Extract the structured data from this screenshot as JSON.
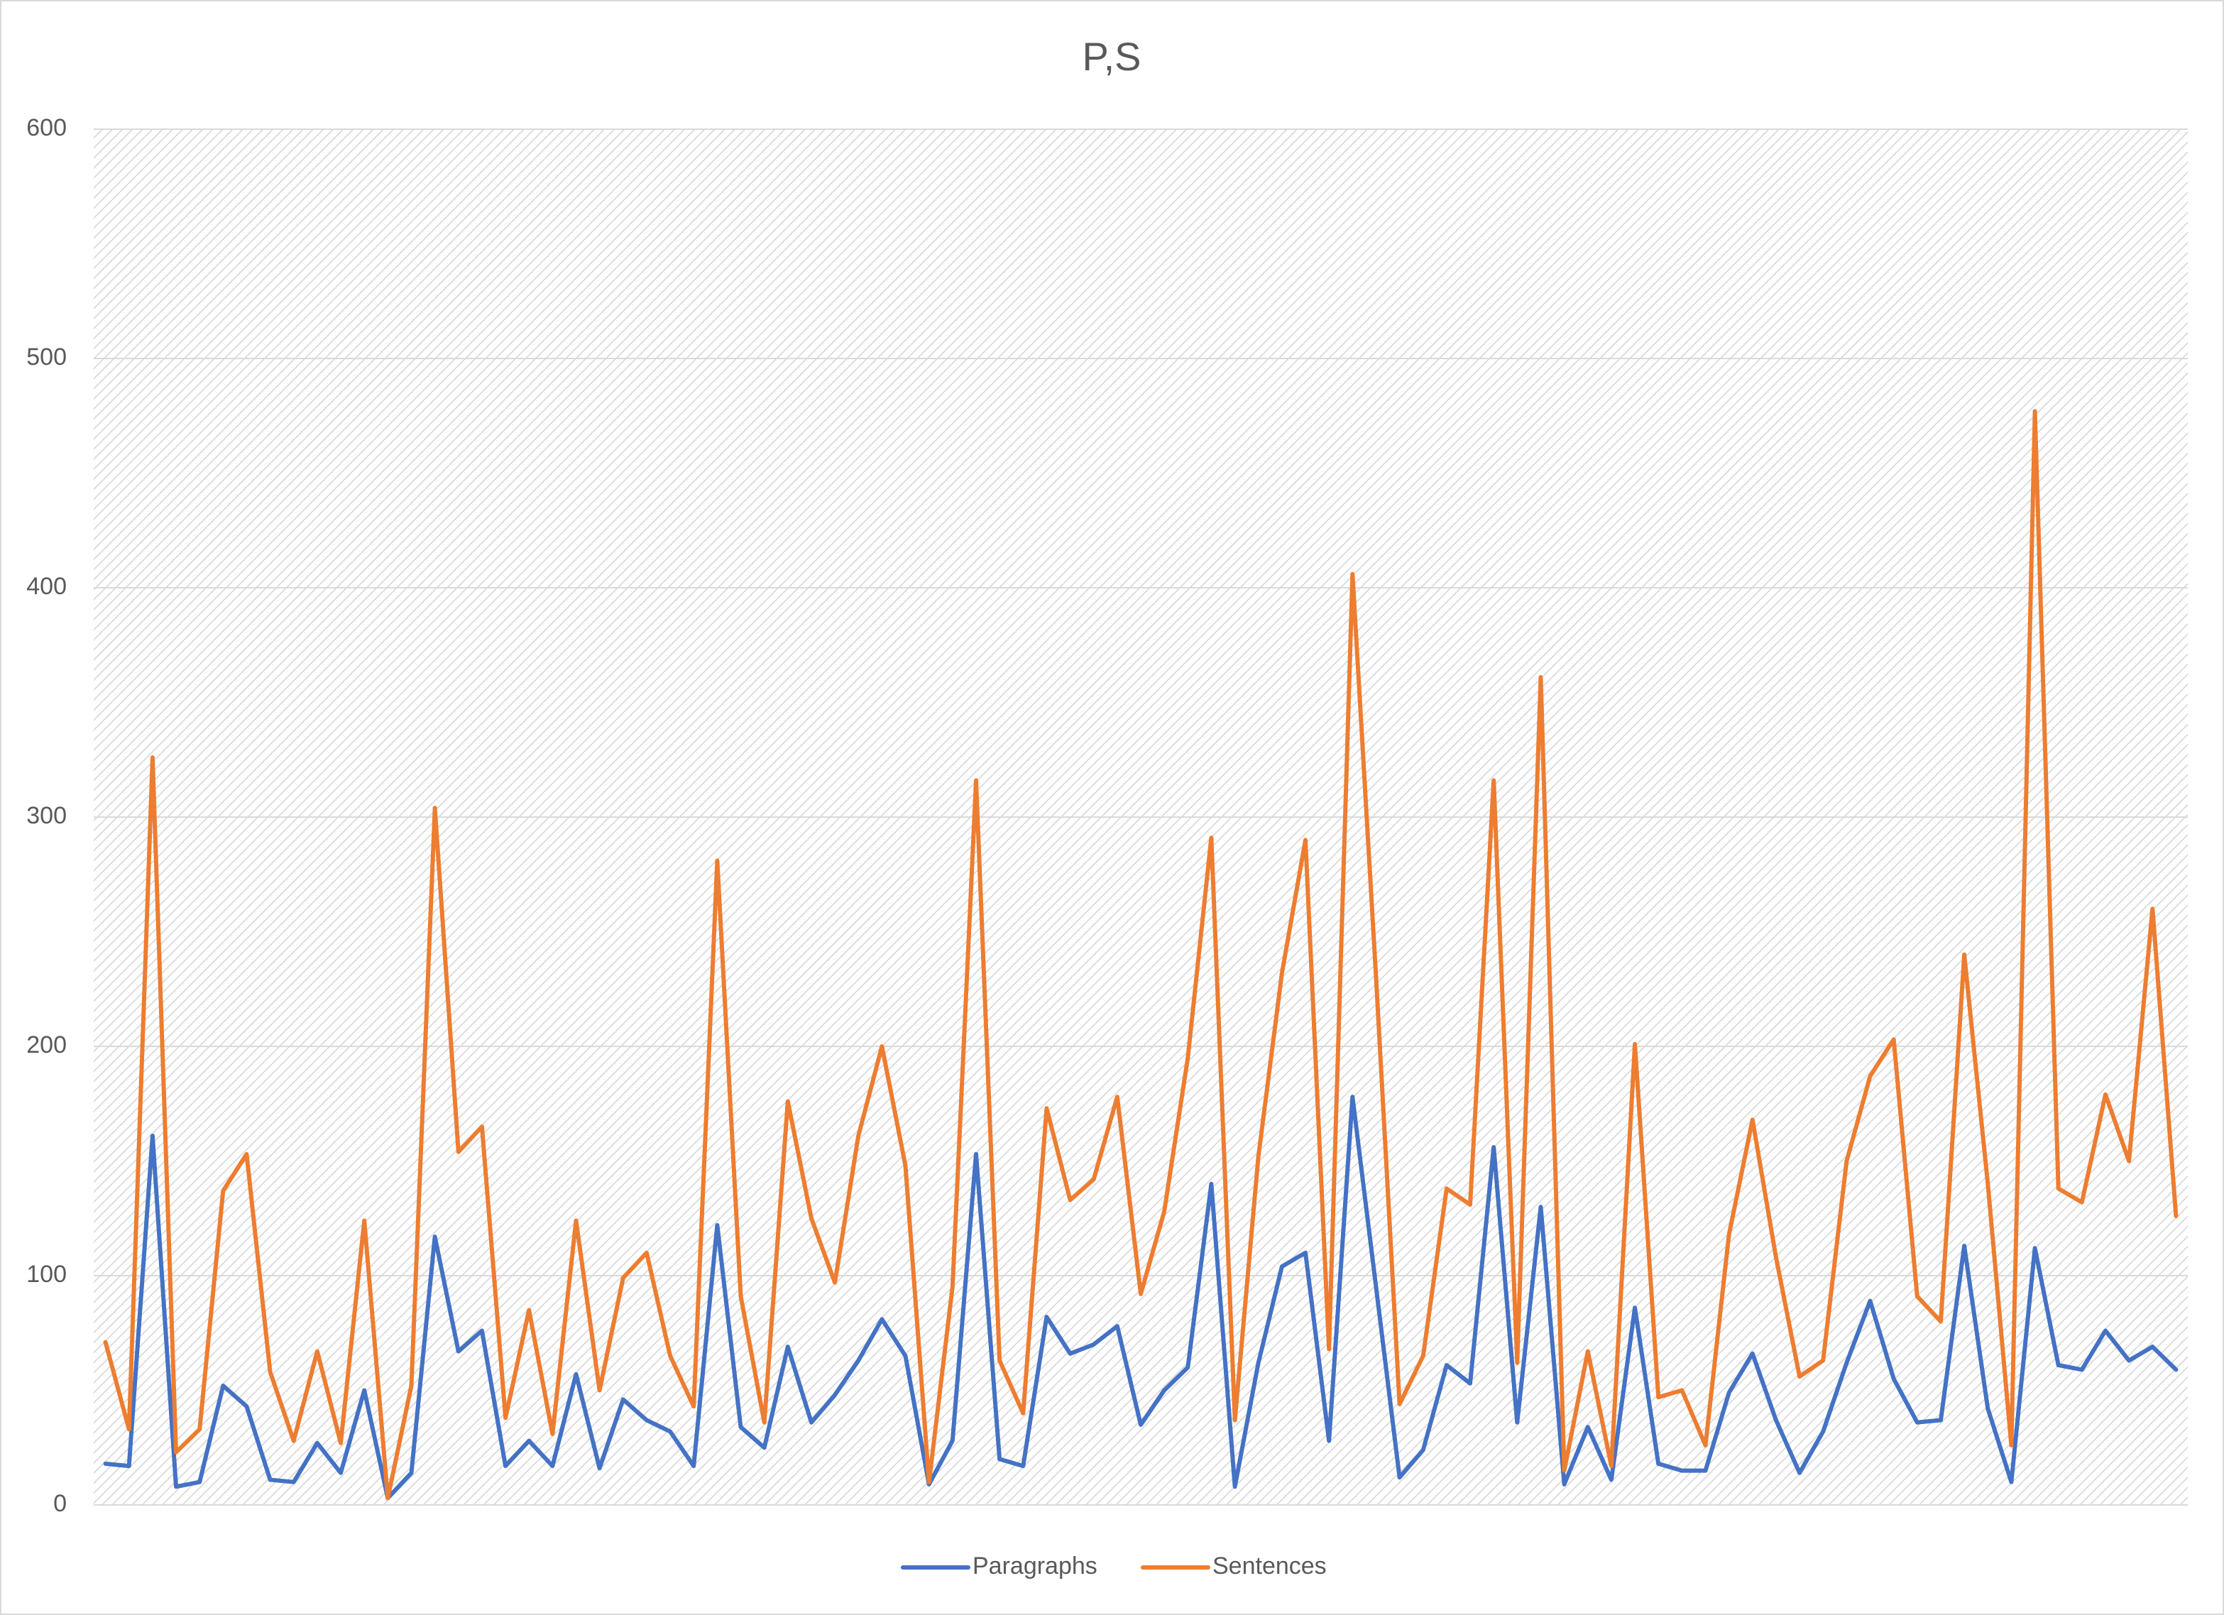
{
  "chart_data": {
    "type": "line",
    "title": "P,S",
    "categories": [
      null,
      null,
      null,
      null,
      null,
      null,
      null,
      null,
      null,
      null,
      null,
      null,
      null,
      null,
      null,
      null,
      null,
      null,
      null,
      null,
      null,
      null,
      null,
      null,
      null,
      null,
      null,
      null,
      null,
      null,
      null,
      null,
      null,
      null,
      null,
      null,
      null,
      null,
      null,
      null,
      null,
      null,
      null,
      null,
      null,
      null,
      null,
      null,
      null,
      null,
      null,
      null,
      null,
      null,
      null,
      null,
      null,
      null,
      null,
      null,
      null,
      null,
      null,
      null,
      null,
      null,
      null,
      null,
      null,
      null,
      null,
      null,
      null,
      null,
      null,
      null,
      null,
      null,
      null,
      null,
      null,
      null,
      null,
      null,
      null,
      null,
      null,
      null,
      null
    ],
    "series": [
      {
        "name": "Paragraphs",
        "color": "#4472c4",
        "values": [
          18,
          17,
          161,
          8,
          10,
          52,
          43,
          11,
          10,
          27,
          14,
          50,
          3,
          14,
          117,
          67,
          76,
          17,
          28,
          17,
          57,
          16,
          46,
          37,
          32,
          17,
          122,
          34,
          25,
          69,
          36,
          48,
          63,
          81,
          65,
          9,
          28,
          153,
          20,
          17,
          82,
          66,
          70,
          78,
          35,
          50,
          60,
          140,
          8,
          62,
          104,
          110,
          28,
          178,
          95,
          12,
          24,
          61,
          53,
          156,
          36,
          130,
          9,
          34,
          11,
          86,
          18,
          15,
          15,
          49,
          66,
          37,
          14,
          32,
          62,
          89,
          55,
          36,
          37,
          113,
          42,
          10,
          112,
          61,
          59,
          76,
          63,
          69,
          59
        ]
      },
      {
        "name": "Sentences",
        "color": "#ed7d31",
        "values": [
          71,
          33,
          326,
          23,
          33,
          137,
          153,
          58,
          28,
          67,
          27,
          124,
          3,
          52,
          304,
          154,
          165,
          38,
          85,
          31,
          124,
          50,
          99,
          110,
          65,
          43,
          281,
          91,
          36,
          176,
          125,
          97,
          161,
          200,
          148,
          10,
          95,
          316,
          63,
          40,
          173,
          133,
          142,
          178,
          92,
          128,
          195,
          291,
          37,
          152,
          232,
          290,
          68,
          406,
          230,
          44,
          65,
          138,
          131,
          316,
          62,
          361,
          15,
          67,
          17,
          201,
          47,
          50,
          26,
          118,
          168,
          108,
          56,
          63,
          150,
          187,
          203,
          91,
          80,
          240,
          140,
          26,
          477,
          138,
          132,
          179,
          150,
          260,
          126
        ]
      }
    ],
    "ylim": [
      0,
      600
    ],
    "yticks": [
      0,
      100,
      200,
      300,
      400,
      500,
      600
    ],
    "grid": true,
    "legend": "bottom"
  }
}
